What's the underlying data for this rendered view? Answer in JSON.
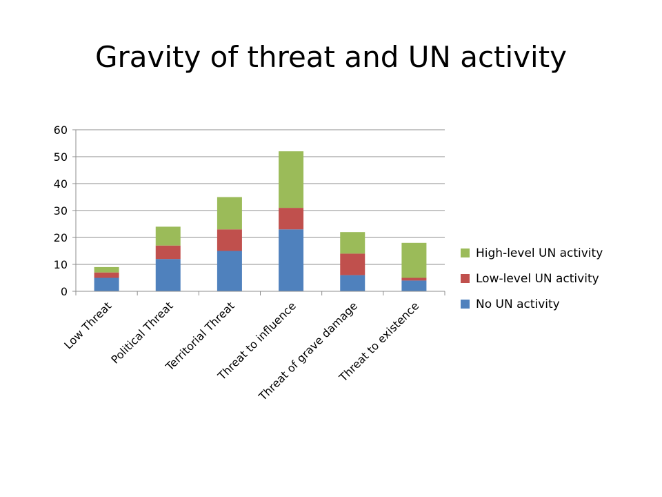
{
  "page": {
    "title": "Gravity of threat and UN activity"
  },
  "chart_data": {
    "type": "bar",
    "stacked": true,
    "title": "Gravity of threat and UN activity",
    "xlabel": "",
    "ylabel": "",
    "ylim": [
      0,
      60
    ],
    "yticks": [
      0,
      10,
      20,
      30,
      40,
      50,
      60
    ],
    "grid": true,
    "legend_position": "right",
    "categories": [
      "Low Threat",
      "Political Threat",
      "Territorial Threat",
      "Threat to influence",
      "Threat of grave damage",
      "Threat to existence"
    ],
    "series": [
      {
        "name": "No UN activity",
        "color": "#4f81bd",
        "values": [
          5,
          12,
          15,
          23,
          6,
          4
        ]
      },
      {
        "name": "Low-level UN activity",
        "color": "#c0504d",
        "values": [
          2,
          5,
          8,
          8,
          8,
          1
        ]
      },
      {
        "name": "High-level UN activity",
        "color": "#9bbb59",
        "values": [
          2,
          7,
          12,
          21,
          8,
          13
        ]
      }
    ]
  }
}
